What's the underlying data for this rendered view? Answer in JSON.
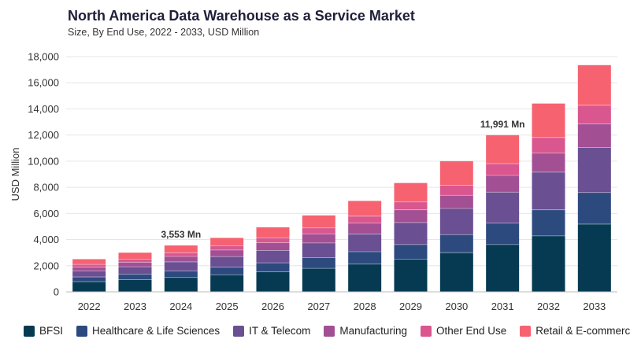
{
  "header": {
    "title": "North America Data Warehouse as a Service Market",
    "subtitle": "Size, By End Use, 2022 - 2033, USD Million"
  },
  "chart_data": {
    "type": "bar",
    "stacked": true,
    "title": "North America Data Warehouse as a Service Market",
    "subtitle": "Size, By End Use, 2022 - 2033, USD Million",
    "xlabel": "",
    "ylabel": "USD Million",
    "ylim": [
      0,
      18000
    ],
    "yticks": [
      0,
      2000,
      4000,
      6000,
      8000,
      10000,
      12000,
      14000,
      16000,
      18000
    ],
    "ytick_labels": [
      "0",
      "2,000",
      "4,000",
      "6,000",
      "8,000",
      "10,000",
      "12,000",
      "14,000",
      "16,000",
      "18,000"
    ],
    "grid": true,
    "legend_position": "bottom",
    "categories": [
      "2022",
      "2023",
      "2024",
      "2025",
      "2026",
      "2027",
      "2028",
      "2029",
      "2030",
      "2031",
      "2032",
      "2033"
    ],
    "series": [
      {
        "name": "BFSI",
        "color": "#053a52",
        "values": [
          780,
          930,
          1100,
          1300,
          1530,
          1800,
          2120,
          2500,
          3000,
          3620,
          4280,
          5180
        ]
      },
      {
        "name": "Healthcare & Life Sciences",
        "color": "#2d4a7f",
        "values": [
          360,
          430,
          510,
          600,
          690,
          810,
          950,
          1120,
          1380,
          1650,
          2000,
          2420
        ]
      },
      {
        "name": "IT & Telecom",
        "color": "#6a4f92",
        "values": [
          470,
          560,
          680,
          800,
          950,
          1130,
          1360,
          1680,
          2000,
          2360,
          2880,
          3450
        ]
      },
      {
        "name": "Manufacturing",
        "color": "#a24f94",
        "values": [
          290,
          350,
          420,
          500,
          590,
          700,
          830,
          980,
          1010,
          1280,
          1470,
          1800
        ]
      },
      {
        "name": "Other End Use",
        "color": "#d9568e",
        "values": [
          200,
          230,
          280,
          330,
          380,
          450,
          530,
          600,
          770,
          900,
          1180,
          1430
        ]
      },
      {
        "name": "Retail & E-commerce",
        "color": "#f66270",
        "values": [
          400,
          500,
          563,
          600,
          800,
          960,
          1170,
          1450,
          1840,
          2181,
          2600,
          3070
        ]
      }
    ],
    "annotations": [
      {
        "category": "2024",
        "text": "3,553 Mn"
      },
      {
        "category": "2031",
        "text": "11,991 Mn"
      }
    ]
  }
}
